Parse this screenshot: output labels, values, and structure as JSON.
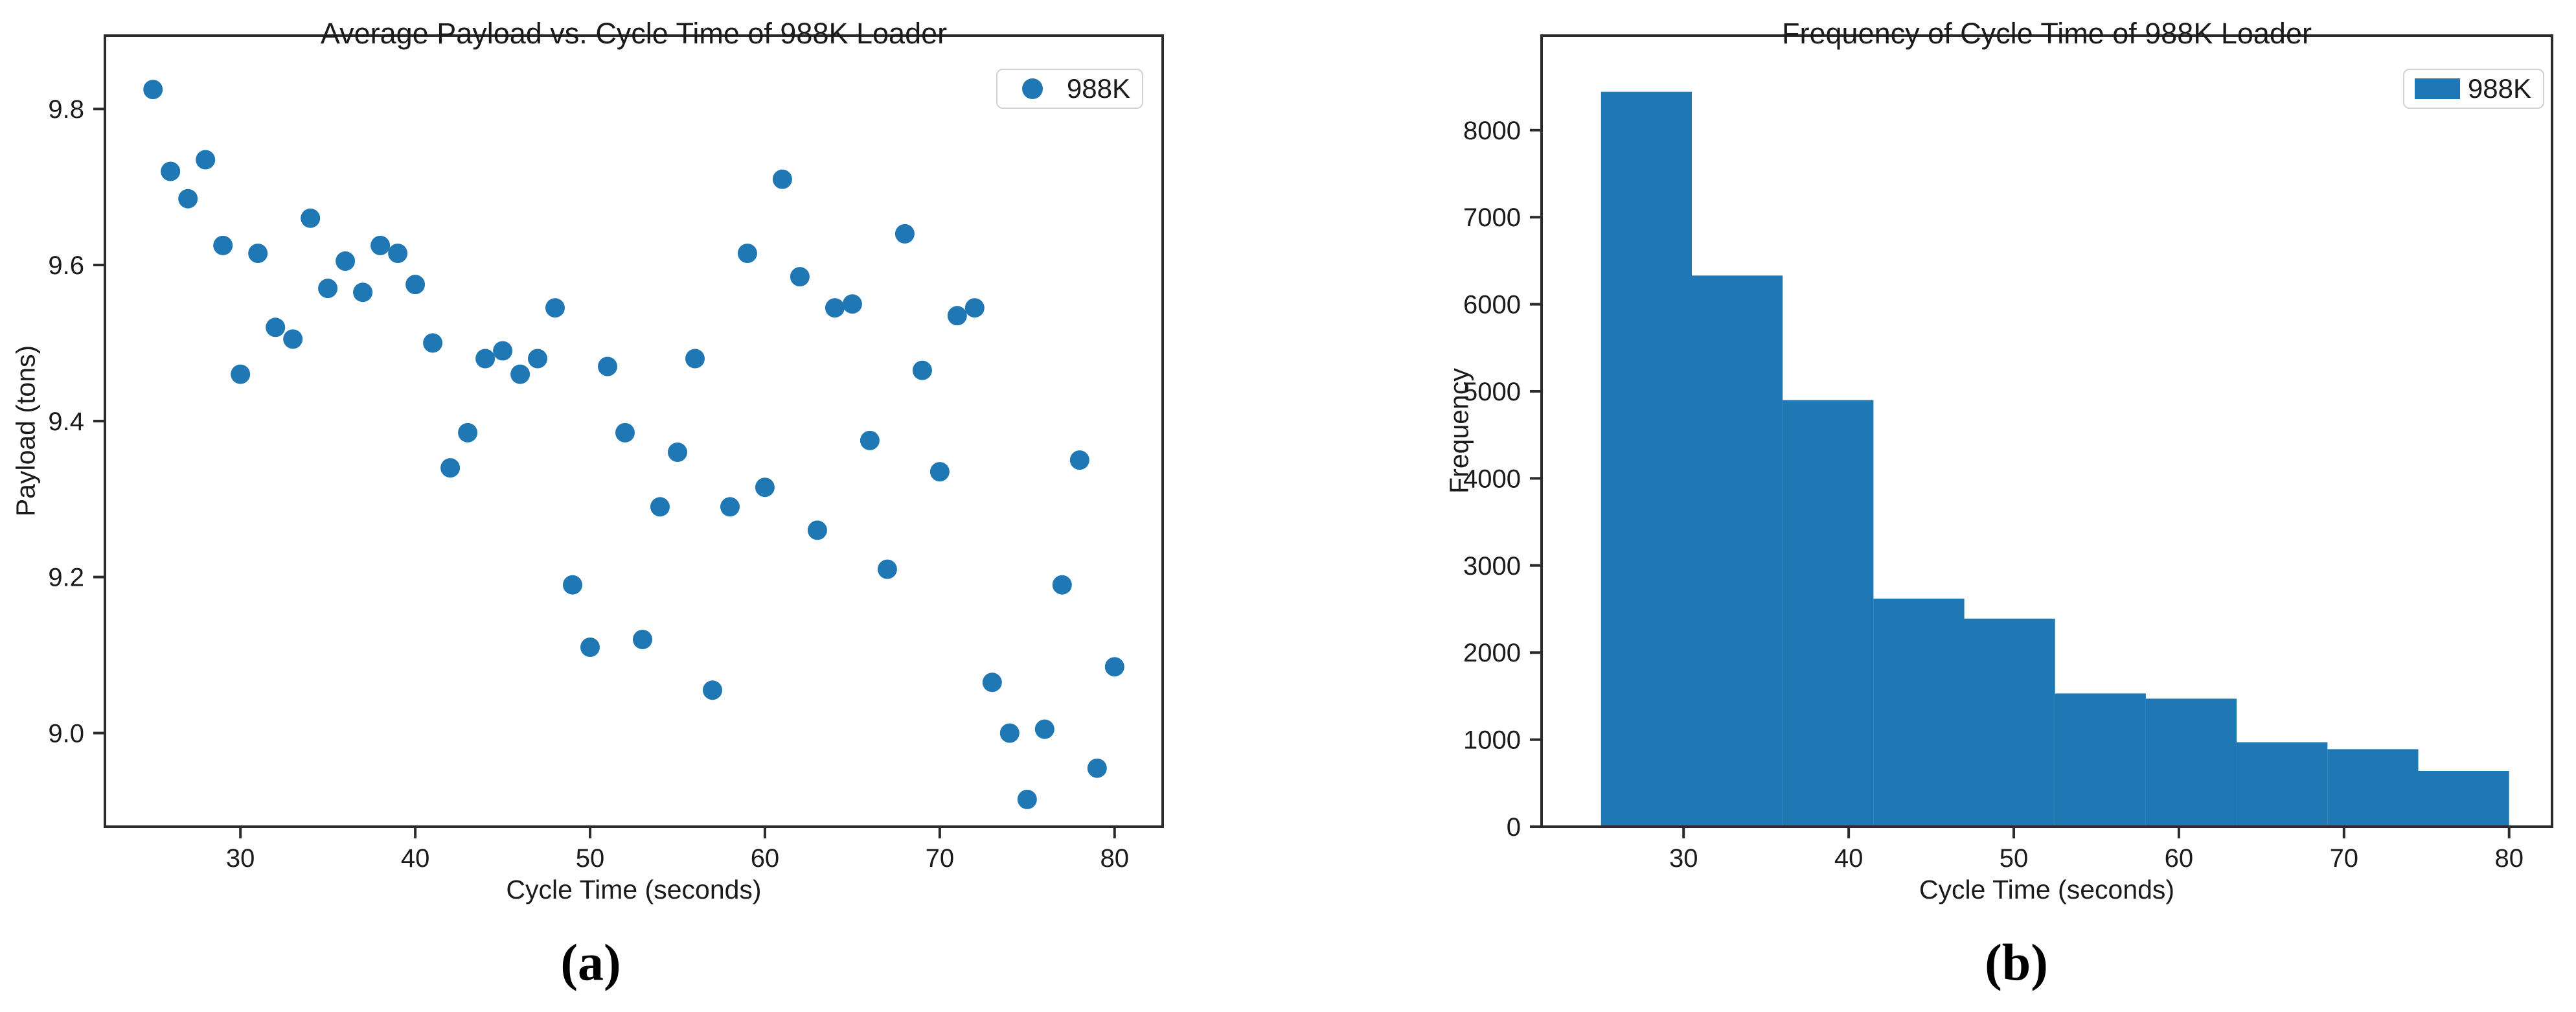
{
  "figure": {
    "background_color": "#ffffff",
    "accent_color": "#1f77b4",
    "spine_color": "#2b2b2b",
    "text_color": "#1a1a1a"
  },
  "chart_data": [
    {
      "type": "scatter",
      "title": "Average Payload vs. Cycle Time of 988K Loader",
      "xlabel": "Cycle Time (seconds)",
      "ylabel": "Payload (tons)",
      "caption": "(a)",
      "legend": {
        "label": "988K",
        "position": "upper right",
        "marker": "dot"
      },
      "series_name": "988K",
      "color": "#1f77b4",
      "grid": false,
      "xlim": [
        22.25,
        82.75
      ],
      "ylim": [
        8.88,
        9.894
      ],
      "xticks": [
        30,
        40,
        50,
        60,
        70,
        80
      ],
      "xtick_labels": [
        "30",
        "40",
        "50",
        "60",
        "70",
        "80"
      ],
      "yticks": [
        9.0,
        9.2,
        9.4,
        9.6,
        9.8
      ],
      "ytick_labels": [
        "9.0",
        "9.2",
        "9.4",
        "9.6",
        "9.8"
      ],
      "points": [
        [
          25,
          9.825
        ],
        [
          26,
          9.72
        ],
        [
          27,
          9.685
        ],
        [
          28,
          9.735
        ],
        [
          29,
          9.625
        ],
        [
          30,
          9.46
        ],
        [
          31,
          9.615
        ],
        [
          32,
          9.52
        ],
        [
          33,
          9.505
        ],
        [
          34,
          9.66
        ],
        [
          35,
          9.57
        ],
        [
          36,
          9.605
        ],
        [
          37,
          9.565
        ],
        [
          38,
          9.625
        ],
        [
          39,
          9.615
        ],
        [
          40,
          9.575
        ],
        [
          41,
          9.5
        ],
        [
          42,
          9.34
        ],
        [
          43,
          9.385
        ],
        [
          44,
          9.48
        ],
        [
          45,
          9.49
        ],
        [
          46,
          9.46
        ],
        [
          47,
          9.48
        ],
        [
          48,
          9.545
        ],
        [
          49,
          9.19
        ],
        [
          50,
          9.11
        ],
        [
          51,
          9.47
        ],
        [
          52,
          9.385
        ],
        [
          53,
          9.12
        ],
        [
          54,
          9.29
        ],
        [
          55,
          9.36
        ],
        [
          56,
          9.48
        ],
        [
          57,
          9.055
        ],
        [
          58,
          9.29
        ],
        [
          59,
          9.615
        ],
        [
          60,
          9.315
        ],
        [
          61,
          9.71
        ],
        [
          62,
          9.585
        ],
        [
          63,
          9.26
        ],
        [
          64,
          9.545
        ],
        [
          65,
          9.55
        ],
        [
          66,
          9.375
        ],
        [
          67,
          9.21
        ],
        [
          68,
          9.64
        ],
        [
          69,
          9.465
        ],
        [
          70,
          9.335
        ],
        [
          71,
          9.535
        ],
        [
          72,
          9.545
        ],
        [
          73,
          9.065
        ],
        [
          74,
          9.0
        ],
        [
          75,
          8.915
        ],
        [
          76,
          9.005
        ],
        [
          77,
          9.19
        ],
        [
          78,
          9.35
        ],
        [
          79,
          8.955
        ],
        [
          80,
          9.085
        ]
      ]
    },
    {
      "type": "histogram",
      "title": "Frequency of Cycle Time of 988K Loader",
      "xlabel": "Cycle Time (seconds)",
      "ylabel": "Frequency",
      "caption": "(b)",
      "legend": {
        "label": "988K",
        "position": "upper right",
        "marker": "rect"
      },
      "series_name": "988K",
      "color": "#1f77b4",
      "grid": false,
      "bin_start": 25,
      "bin_width": 5.5,
      "bin_end": 80,
      "values": [
        8440,
        6330,
        4900,
        2620,
        2390,
        1530,
        1470,
        970,
        890,
        640
      ],
      "xlim": [
        21.4,
        82.6
      ],
      "ylim": [
        0,
        9085
      ],
      "xticks": [
        30,
        40,
        50,
        60,
        70,
        80
      ],
      "xtick_labels": [
        "30",
        "40",
        "50",
        "60",
        "70",
        "80"
      ],
      "yticks": [
        0,
        1000,
        2000,
        3000,
        4000,
        5000,
        6000,
        7000,
        8000
      ],
      "ytick_labels": [
        "0",
        "1000",
        "2000",
        "3000",
        "4000",
        "5000",
        "6000",
        "7000",
        "8000"
      ]
    }
  ]
}
